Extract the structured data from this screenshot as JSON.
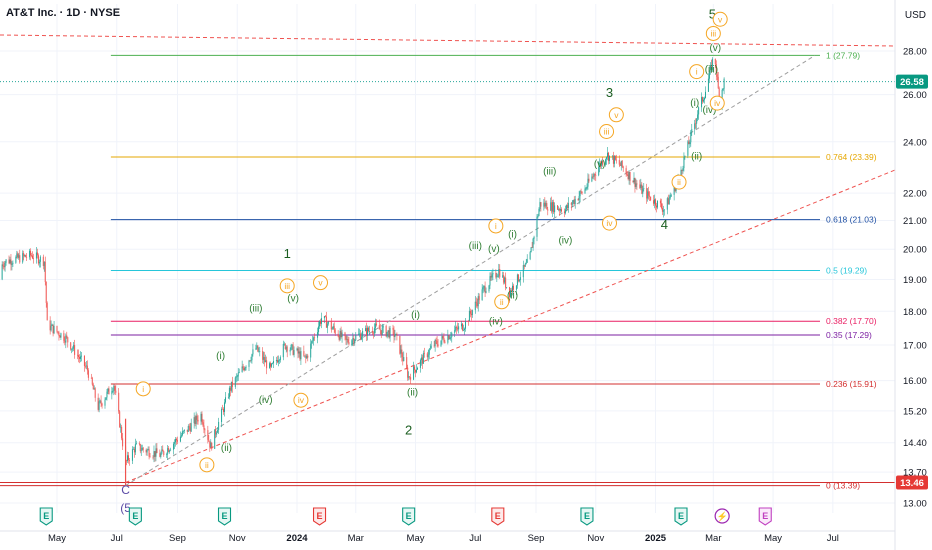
{
  "header": {
    "title": "AT&T Inc. · 1D · NYSE",
    "currency": "USD"
  },
  "colors": {
    "up": "#26a69a",
    "down": "#ef5350",
    "grid": "#f0f3fa",
    "channel": "#ef5350",
    "wave_major": "#1b5e20",
    "wave_minor": "#2e7d32",
    "wave_sub": "#f5a623",
    "wave_c": "#5b4ba6"
  },
  "chart_data": {
    "type": "candlestick",
    "y_axis": {
      "ticks": [
        13.0,
        13.7,
        14.4,
        15.2,
        16.0,
        17.0,
        18.0,
        19.0,
        20.0,
        21.0,
        22.0,
        24.0,
        26.0,
        28.0
      ],
      "tick_labels": [
        "13.00",
        "13.70",
        "14.40",
        "15.20",
        "16.00",
        "17.00",
        "18.00",
        "19.00",
        "20.00",
        "21.00",
        "22.00",
        "24.00",
        "26.00",
        "28.00"
      ],
      "scale": "log"
    },
    "x_axis": {
      "ticks": [
        "May",
        "Jul",
        "Sep",
        "Nov",
        "2024",
        "Mar",
        "May",
        "Jul",
        "Sep",
        "Nov",
        "2025",
        "Mar",
        "May",
        "Jul"
      ],
      "bold": [
        "2024",
        "2025"
      ]
    },
    "last_price": {
      "value": 26.58,
      "label": "26.58"
    },
    "low_marker": {
      "value": 13.46,
      "label": "13.46"
    },
    "fib_levels": [
      {
        "value": 27.79,
        "label": "1 (27.79)",
        "color": "#4caf50"
      },
      {
        "value": 23.39,
        "label": "0.764 (23.39)",
        "color": "#e6a700"
      },
      {
        "value": 21.03,
        "label": "0.618 (21.03)",
        "color": "#1e4fa3"
      },
      {
        "value": 19.29,
        "label": "0.5 (19.29)",
        "color": "#26c6da"
      },
      {
        "value": 17.7,
        "label": "0.382 (17.70)",
        "color": "#e91e63"
      },
      {
        "value": 17.29,
        "label": "0.35 (17.29)",
        "color": "#7b1fa2"
      },
      {
        "value": 15.91,
        "label": "0.236 (15.91)",
        "color": "#d32f2f"
      },
      {
        "value": 13.39,
        "label": "0 (13.39)",
        "color": "#d32f2f"
      }
    ],
    "wave_labels": [
      {
        "text": "5",
        "style": "major",
        "date": "2025-02-28",
        "price": 29.6
      },
      {
        "text": "3",
        "style": "major",
        "date": "2024-11-15",
        "price": 25.9
      },
      {
        "text": "4",
        "style": "major",
        "date": "2025-01-10",
        "price": 20.7
      },
      {
        "text": "1",
        "style": "major",
        "date": "2023-12-22",
        "price": 19.7
      },
      {
        "text": "2",
        "style": "major",
        "date": "2024-04-24",
        "price": 14.6
      },
      {
        "text": "C",
        "style": "c",
        "date": "2023-07-10",
        "price": 13.2
      },
      {
        "text": "(5",
        "style": "c",
        "date": "2023-07-10",
        "price": 12.8
      },
      {
        "text": "(iii)",
        "style": "minor",
        "date": "2024-09-15",
        "price": 22.7
      },
      {
        "text": "(iv)",
        "style": "minor",
        "date": "2024-10-01",
        "price": 20.2
      },
      {
        "text": "(v)",
        "style": "minor",
        "date": "2024-11-05",
        "price": 23.0
      },
      {
        "text": "(iii)",
        "style": "minor",
        "date": "2024-07-01",
        "price": 20.0
      },
      {
        "text": "(v)",
        "style": "minor",
        "date": "2024-07-20",
        "price": 19.9
      },
      {
        "text": "(i)",
        "style": "minor",
        "date": "2024-08-08",
        "price": 20.4
      },
      {
        "text": "(ii)",
        "style": "minor",
        "date": "2024-08-08",
        "price": 18.4
      },
      {
        "text": "(iv)",
        "style": "minor",
        "date": "2024-07-22",
        "price": 17.6
      },
      {
        "text": "(i)",
        "style": "minor",
        "date": "2024-05-01",
        "price": 17.8
      },
      {
        "text": "(ii)",
        "style": "minor",
        "date": "2024-04-28",
        "price": 15.6
      },
      {
        "text": "(iii)",
        "style": "minor",
        "date": "2023-11-20",
        "price": 18.0
      },
      {
        "text": "(v)",
        "style": "minor",
        "date": "2023-12-28",
        "price": 18.3
      },
      {
        "text": "(i)",
        "style": "minor",
        "date": "2023-10-15",
        "price": 16.6
      },
      {
        "text": "(iv)",
        "style": "minor",
        "date": "2023-11-30",
        "price": 15.4
      },
      {
        "text": "(ii)",
        "style": "minor",
        "date": "2023-10-21",
        "price": 14.2
      },
      {
        "text": "(i)",
        "style": "minor",
        "date": "2025-02-10",
        "price": 25.5
      },
      {
        "text": "(iii)",
        "style": "minor",
        "date": "2025-02-27",
        "price": 27.0
      },
      {
        "text": "(v)",
        "style": "minor",
        "date": "2025-03-03",
        "price": 28.0
      },
      {
        "text": "(iv)",
        "style": "minor",
        "date": "2025-02-25",
        "price": 25.2
      },
      {
        "text": "(ii)",
        "style": "minor",
        "date": "2025-02-12",
        "price": 23.3
      },
      {
        "text": "iii",
        "style": "sub",
        "date": "2023-12-22",
        "price": 18.7
      },
      {
        "text": "v",
        "style": "sub",
        "date": "2024-01-25",
        "price": 18.8
      },
      {
        "text": "iv",
        "style": "sub",
        "date": "2024-01-05",
        "price": 15.4
      },
      {
        "text": "i",
        "style": "sub",
        "date": "2023-07-28",
        "price": 15.7
      },
      {
        "text": "ii",
        "style": "sub",
        "date": "2023-10-01",
        "price": 13.8
      },
      {
        "text": "i",
        "style": "sub",
        "date": "2024-07-22",
        "price": 20.7
      },
      {
        "text": "ii",
        "style": "sub",
        "date": "2024-07-28",
        "price": 18.2
      },
      {
        "text": "iii",
        "style": "sub",
        "date": "2024-11-12",
        "price": 24.3
      },
      {
        "text": "v",
        "style": "sub",
        "date": "2024-11-22",
        "price": 25.0
      },
      {
        "text": "iv",
        "style": "sub",
        "date": "2024-11-15",
        "price": 20.8
      },
      {
        "text": "ii",
        "style": "sub",
        "date": "2025-01-25",
        "price": 22.3
      },
      {
        "text": "i",
        "style": "sub",
        "date": "2025-02-12",
        "price": 26.9
      },
      {
        "text": "iii",
        "style": "sub",
        "date": "2025-03-01",
        "price": 28.7
      },
      {
        "text": "v",
        "style": "sub",
        "date": "2025-03-08",
        "price": 29.4
      },
      {
        "text": "iv",
        "style": "sub",
        "date": "2025-03-05",
        "price": 25.5
      }
    ],
    "events": [
      {
        "date": "2023-04-20",
        "type": "earnings",
        "label": "E"
      },
      {
        "date": "2023-07-20",
        "type": "earnings",
        "label": "E"
      },
      {
        "date": "2023-10-19",
        "type": "earnings",
        "label": "E"
      },
      {
        "date": "2024-01-24",
        "type": "dividend",
        "label": "E"
      },
      {
        "date": "2024-04-24",
        "type": "earnings",
        "label": "E"
      },
      {
        "date": "2024-07-24",
        "type": "dividend",
        "label": "E"
      },
      {
        "date": "2024-10-23",
        "type": "earnings",
        "label": "E"
      },
      {
        "date": "2025-01-27",
        "type": "earnings",
        "label": "E"
      },
      {
        "date": "2025-03-10",
        "type": "flash",
        "label": "⚡"
      },
      {
        "date": "2025-04-23",
        "type": "future",
        "label": "E"
      }
    ]
  }
}
